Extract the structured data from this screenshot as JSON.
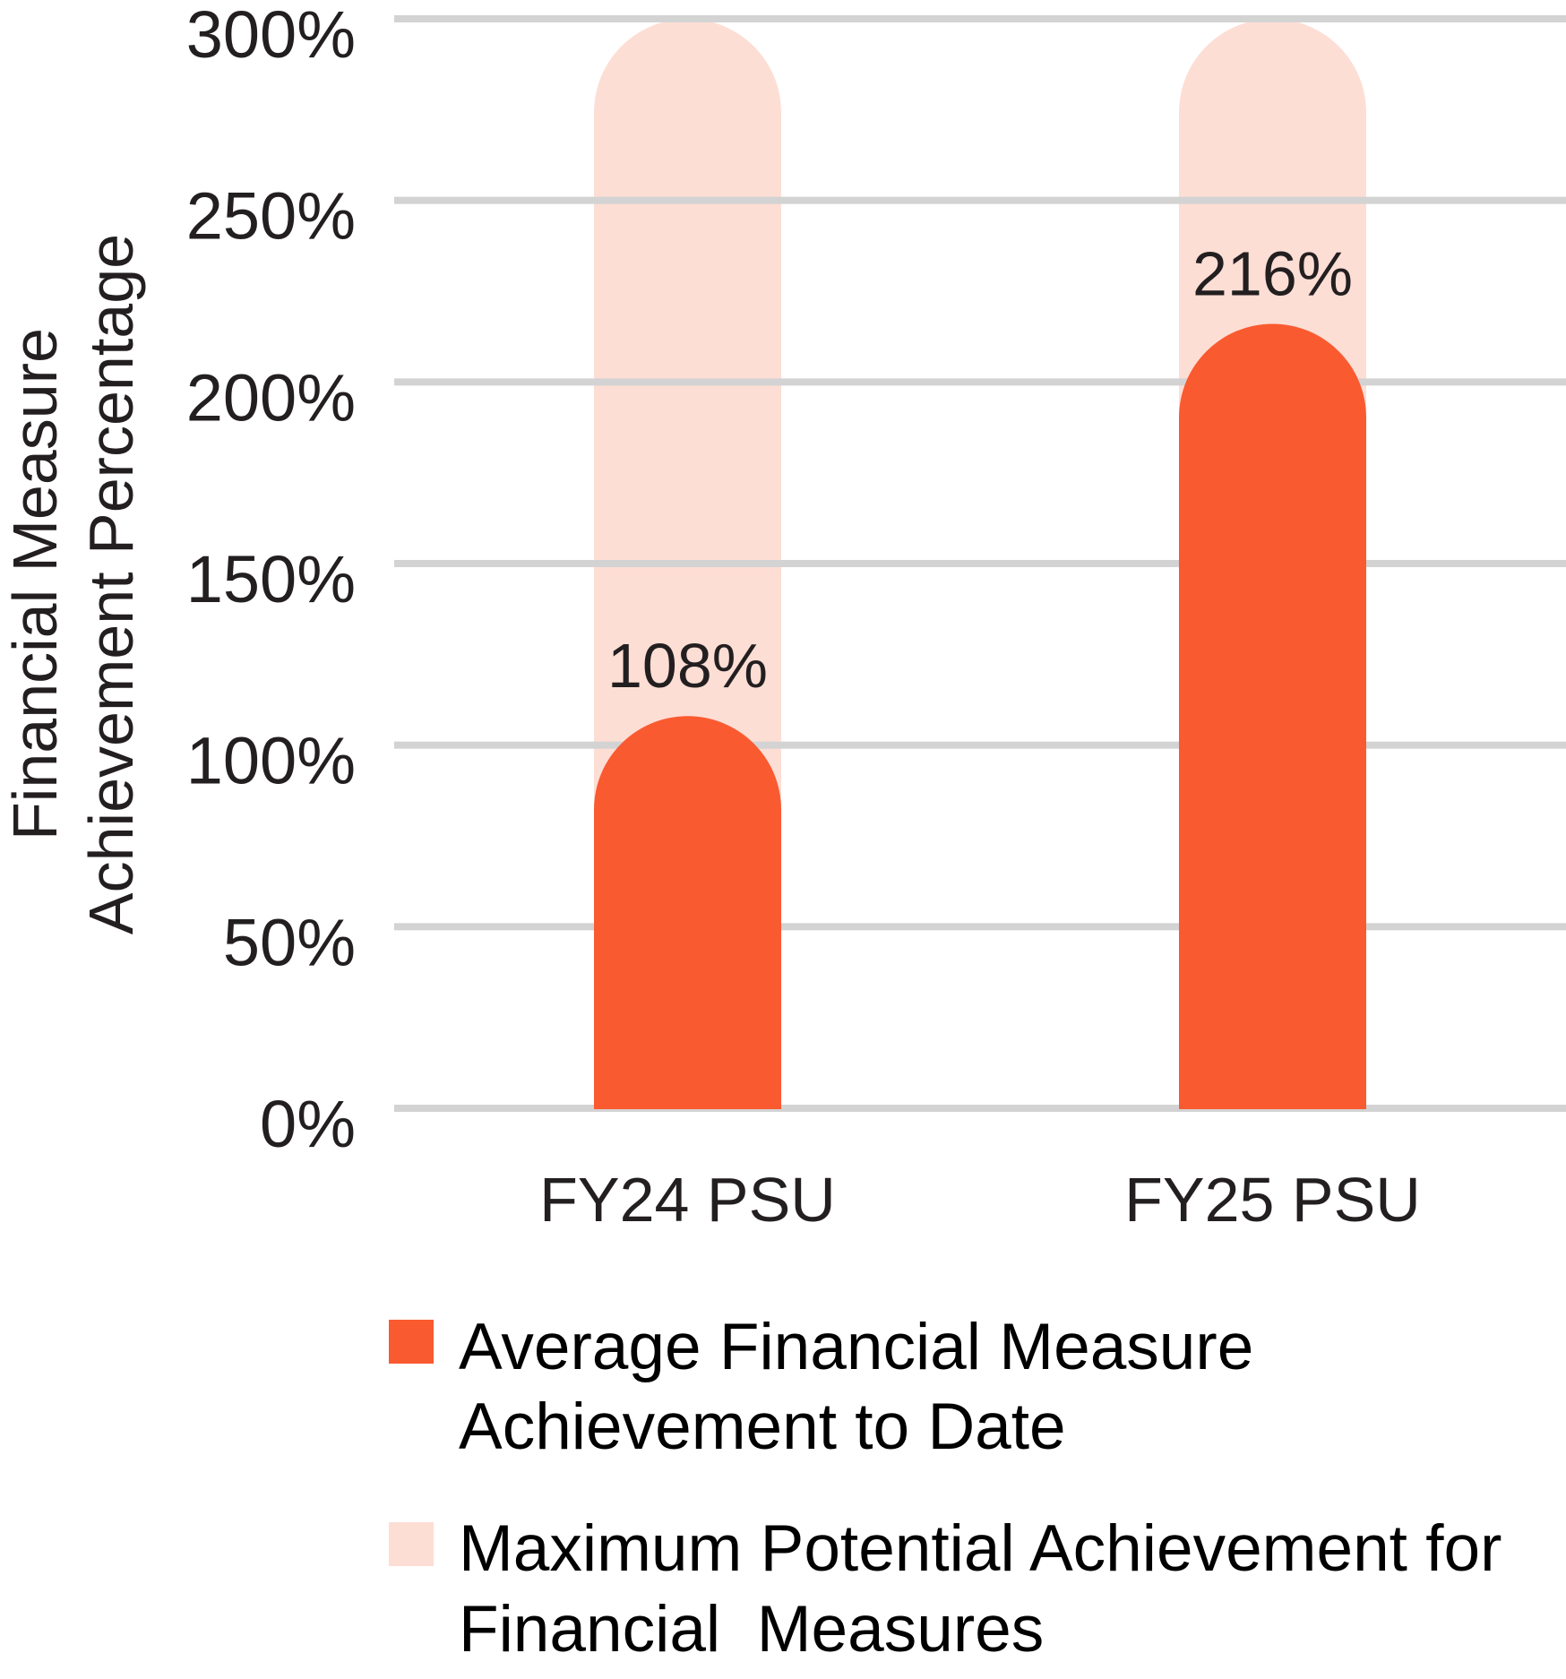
{
  "chart_data": {
    "type": "bar",
    "title": "",
    "xlabel": "",
    "ylabel": "Financial Measure Achievement Percentage",
    "ylabel_lines": [
      "Financial Measure",
      "Achievement Percentage"
    ],
    "ylim": [
      0,
      300
    ],
    "yticks": [
      0,
      50,
      100,
      150,
      200,
      250,
      300
    ],
    "ytick_labels": [
      "0%",
      "50%",
      "100%",
      "150%",
      "200%",
      "250%",
      "300%"
    ],
    "grid": true,
    "categories": [
      "FY24 PSU",
      "FY25 PSU"
    ],
    "series": [
      {
        "name": "Average Financial Measure Achievement to Date",
        "legend_lines": [
          "Average Financial Measure",
          "Achievement to Date"
        ],
        "values": [
          108,
          216
        ],
        "value_labels": [
          "108%",
          "216%"
        ],
        "color": "#FA5A30"
      },
      {
        "name": "Maximum Potential Achievement for Financial  Measures",
        "legend_lines": [
          "Maximum Potential Achievement for",
          "Financial  Measures"
        ],
        "values": [
          300,
          300
        ],
        "color": "#FDDED5"
      }
    ],
    "legend_position": "bottom",
    "overlay": true,
    "bar_style": "rounded-top"
  },
  "style": {
    "gridline_color": "#D3D3D3",
    "text_color": "#231F20",
    "legend_text_color": "#000000"
  }
}
